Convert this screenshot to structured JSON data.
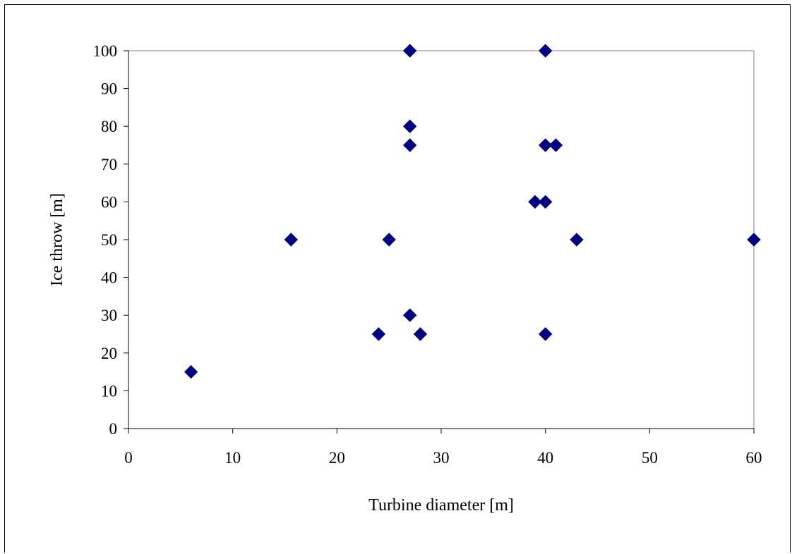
{
  "chart_data": {
    "type": "scatter",
    "title": "",
    "xlabel": "Turbine diameter [m]",
    "ylabel": "Ice throw [m]",
    "xlim": [
      0,
      60
    ],
    "ylim": [
      0,
      100
    ],
    "x_ticks": [
      0,
      10,
      20,
      30,
      40,
      50,
      60
    ],
    "y_ticks": [
      0,
      10,
      20,
      30,
      40,
      50,
      60,
      70,
      80,
      90,
      100
    ],
    "grid": false,
    "legend": "none",
    "marker": "diamond",
    "marker_color": "#000080",
    "points": [
      {
        "x": 6,
        "y": 15
      },
      {
        "x": 15.6,
        "y": 50
      },
      {
        "x": 24,
        "y": 25
      },
      {
        "x": 25,
        "y": 50
      },
      {
        "x": 27,
        "y": 100
      },
      {
        "x": 27,
        "y": 80
      },
      {
        "x": 27,
        "y": 75
      },
      {
        "x": 27,
        "y": 30
      },
      {
        "x": 28,
        "y": 25
      },
      {
        "x": 39,
        "y": 60
      },
      {
        "x": 40,
        "y": 100
      },
      {
        "x": 40,
        "y": 75
      },
      {
        "x": 40,
        "y": 60
      },
      {
        "x": 40,
        "y": 25
      },
      {
        "x": 41,
        "y": 75
      },
      {
        "x": 43,
        "y": 50
      },
      {
        "x": 60,
        "y": 50
      }
    ]
  }
}
